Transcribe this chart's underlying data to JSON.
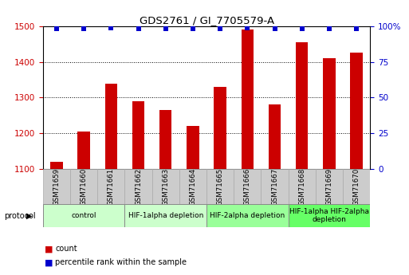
{
  "title": "GDS2761 / GI_7705579-A",
  "samples": [
    "GSM71659",
    "GSM71660",
    "GSM71661",
    "GSM71662",
    "GSM71663",
    "GSM71664",
    "GSM71665",
    "GSM71666",
    "GSM71667",
    "GSM71668",
    "GSM71669",
    "GSM71670"
  ],
  "counts": [
    1120,
    1205,
    1340,
    1290,
    1265,
    1220,
    1330,
    1490,
    1280,
    1455,
    1410,
    1425
  ],
  "percentile_ranks": [
    98,
    98,
    99,
    98,
    98,
    98,
    98,
    99,
    98,
    98,
    98,
    98
  ],
  "ylim_left": [
    1100,
    1500
  ],
  "ylim_right": [
    0,
    100
  ],
  "yticks_left": [
    1100,
    1200,
    1300,
    1400,
    1500
  ],
  "yticks_right": [
    0,
    25,
    50,
    75,
    100
  ],
  "bar_color": "#cc0000",
  "dot_color": "#0000cc",
  "grid_color": "#000000",
  "tick_box_color": "#cccccc",
  "group_info": [
    {
      "start": 0,
      "end": 2,
      "label": "control",
      "color": "#ccffcc"
    },
    {
      "start": 3,
      "end": 5,
      "label": "HIF-1alpha depletion",
      "color": "#ccffcc"
    },
    {
      "start": 6,
      "end": 8,
      "label": "HIF-2alpha depletion",
      "color": "#99ff99"
    },
    {
      "start": 9,
      "end": 11,
      "label": "HIF-1alpha HIF-2alpha\ndepletion",
      "color": "#66ff66"
    }
  ]
}
